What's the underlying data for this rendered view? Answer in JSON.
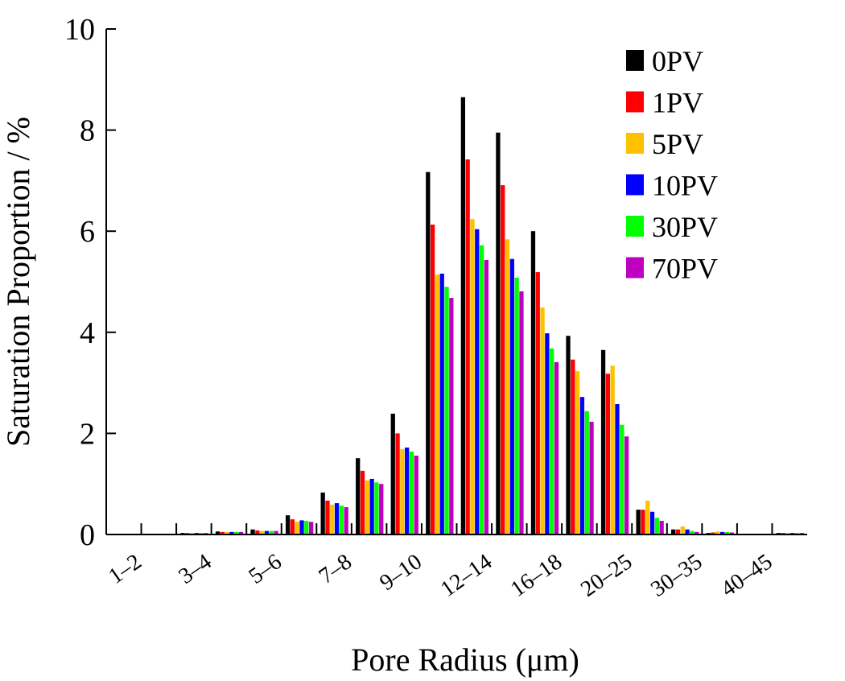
{
  "chart_data": {
    "type": "bar",
    "xlabel": "Pore Radius (μm)",
    "ylabel": "Saturation Proportion / %",
    "categories": [
      "1–2",
      null,
      "3–4",
      null,
      "5–6",
      null,
      "7–8",
      null,
      "9–10",
      null,
      "12–14",
      null,
      "16–18",
      null,
      "20–25",
      null,
      "30–35",
      null,
      "40–45",
      null
    ],
    "series": [
      {
        "name": "0PV",
        "color": "#000000",
        "values": [
          0,
          0,
          0.03,
          0.06,
          0.1,
          0.38,
          0.83,
          1.51,
          2.39,
          7.17,
          8.65,
          7.95,
          6.0,
          3.93,
          3.65,
          0.49,
          0.1,
          0.03,
          0,
          0.03
        ]
      },
      {
        "name": "1PV",
        "color": "#ff0000",
        "values": [
          0,
          0,
          0.03,
          0.05,
          0.08,
          0.3,
          0.67,
          1.26,
          2.0,
          6.13,
          7.42,
          6.91,
          5.19,
          3.46,
          3.18,
          0.49,
          0.1,
          0.04,
          0,
          0.03
        ]
      },
      {
        "name": "5PV",
        "color": "#ffc000",
        "values": [
          0,
          0,
          0.03,
          0.05,
          0.07,
          0.25,
          0.59,
          1.07,
          1.69,
          5.14,
          6.24,
          5.84,
          4.49,
          3.23,
          3.34,
          0.67,
          0.16,
          0.06,
          0,
          0.03
        ]
      },
      {
        "name": "10PV",
        "color": "#0000ff",
        "values": [
          0,
          0,
          0.03,
          0.05,
          0.07,
          0.28,
          0.62,
          1.1,
          1.72,
          5.16,
          6.04,
          5.45,
          3.98,
          2.72,
          2.58,
          0.45,
          0.1,
          0.05,
          0,
          0.03
        ]
      },
      {
        "name": "30PV",
        "color": "#00ff00",
        "values": [
          0,
          0,
          0.03,
          0.05,
          0.07,
          0.27,
          0.57,
          1.03,
          1.64,
          4.9,
          5.72,
          5.08,
          3.68,
          2.44,
          2.17,
          0.33,
          0.07,
          0.05,
          0,
          0.03
        ]
      },
      {
        "name": "70PV",
        "color": "#c000c0",
        "values": [
          0,
          0,
          0.03,
          0.05,
          0.07,
          0.25,
          0.54,
          1.0,
          1.56,
          4.68,
          5.43,
          4.81,
          3.41,
          2.23,
          1.94,
          0.27,
          0.05,
          0.04,
          0,
          0.03
        ]
      }
    ],
    "ylim": [
      0,
      10
    ],
    "yticks": [
      0,
      2,
      4,
      6,
      8,
      10
    ],
    "grid": false,
    "legend": "upper right"
  }
}
